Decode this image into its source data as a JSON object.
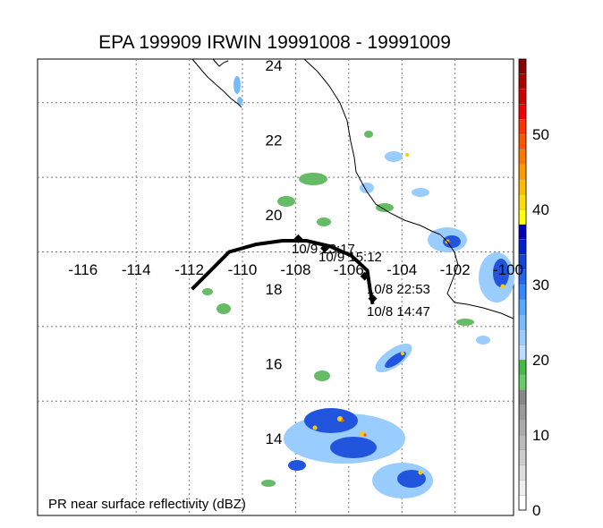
{
  "title": "EPA 199909 IRWIN 19991008 - 19991009",
  "footer_label": "PR near surface reflectivity (dBZ)",
  "longitude_labels": [
    "-116",
    "-114",
    "-112",
    "-110",
    "-108",
    "-106",
    "-104",
    "-102",
    "-100"
  ],
  "latitude_labels": [
    "24",
    "22",
    "20",
    "18",
    "16",
    "14"
  ],
  "track_labels": [
    "10/9 23:17",
    "10/9 15:12",
    "10/8 22:53",
    "10/8 14:47"
  ],
  "colorbar": {
    "tick_labels": [
      "0",
      "10",
      "20",
      "30",
      "40",
      "50"
    ],
    "colors": [
      "#ffffff",
      "#eeeeee",
      "#dddddd",
      "#cccccc",
      "#bbbbbb",
      "#aaaaaa",
      "#999999",
      "#888888",
      "#66cc66",
      "#44bb44",
      "#bbddff",
      "#99ccff",
      "#77bbff",
      "#55aaff",
      "#3388ff",
      "#2266ee",
      "#1144dd",
      "#0022cc",
      "#0000bb",
      "#ffff00",
      "#ffdd00",
      "#ffbb00",
      "#ff9900",
      "#ff7700",
      "#ff5500",
      "#ff3300",
      "#ee0000",
      "#cc0000",
      "#aa0000",
      "#880000"
    ]
  },
  "storm_track": {
    "name": "IRWIN",
    "points": [
      {
        "lon": -111.9,
        "lat": 18.0
      },
      {
        "lon": -111.2,
        "lat": 18.5
      },
      {
        "lon": -110.5,
        "lat": 19.0
      },
      {
        "lon": -109.5,
        "lat": 19.2
      },
      {
        "lon": -108.5,
        "lat": 19.3
      },
      {
        "lon": -107.6,
        "lat": 19.3
      },
      {
        "lon": -106.7,
        "lat": 19.15
      },
      {
        "lon": -105.9,
        "lat": 18.9
      },
      {
        "lon": -105.3,
        "lat": 18.5
      },
      {
        "lon": -105.2,
        "lat": 18.0
      },
      {
        "lon": -105.1,
        "lat": 17.6
      }
    ],
    "markers": [
      {
        "lon": -107.9,
        "lat": 19.35
      },
      {
        "lon": -106.9,
        "lat": 19.1
      },
      {
        "lon": -105.4,
        "lat": 18.35
      },
      {
        "lon": -105.1,
        "lat": 17.75
      }
    ]
  },
  "colors": {
    "track": "#000000",
    "coast": "#000000",
    "grid": "#777777"
  }
}
